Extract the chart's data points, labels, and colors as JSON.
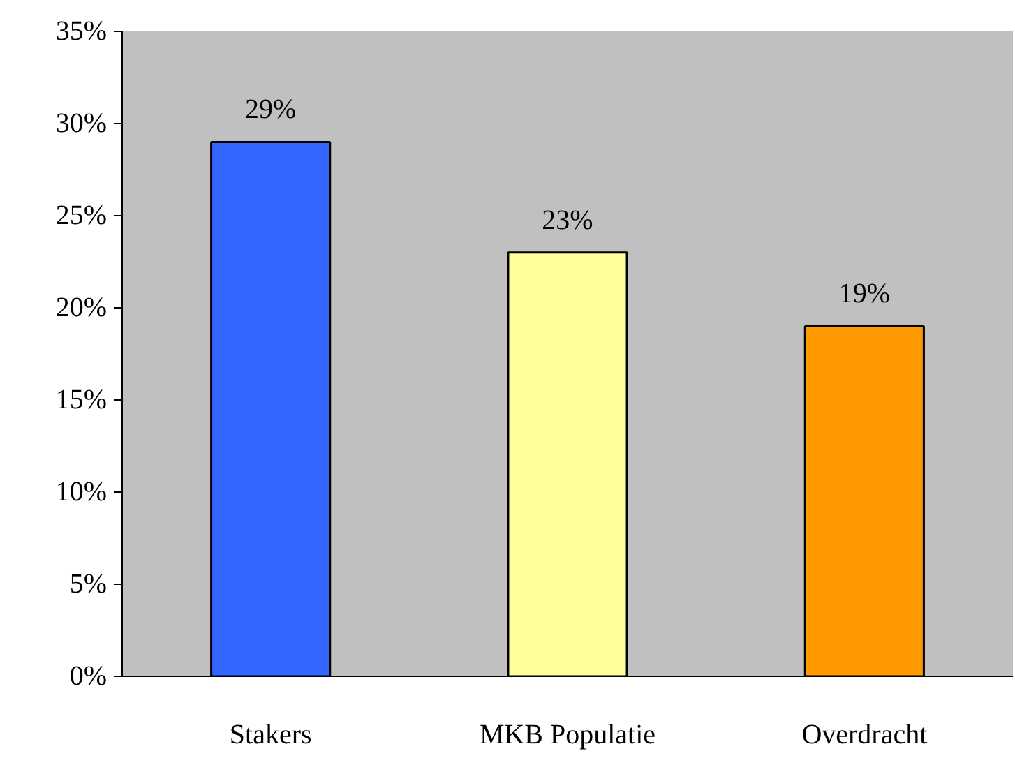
{
  "chart_data": {
    "type": "bar",
    "categories": [
      "Stakers",
      "MKB Populatie",
      "Overdracht"
    ],
    "values": [
      29,
      23,
      19
    ],
    "colors": [
      "#3366ff",
      "#ffff99",
      "#ff9900"
    ],
    "value_labels": [
      "29%",
      "23%",
      "19%"
    ],
    "ylim": [
      0,
      35
    ],
    "yticks": [
      {
        "value": 0,
        "label": "0%"
      },
      {
        "value": 5,
        "label": "5%"
      },
      {
        "value": 10,
        "label": "10%"
      },
      {
        "value": 15,
        "label": "15%"
      },
      {
        "value": 20,
        "label": "20%"
      },
      {
        "value": 25,
        "label": "25%"
      },
      {
        "value": 30,
        "label": "30%"
      },
      {
        "value": 35,
        "label": "35%"
      }
    ],
    "grid": false
  }
}
